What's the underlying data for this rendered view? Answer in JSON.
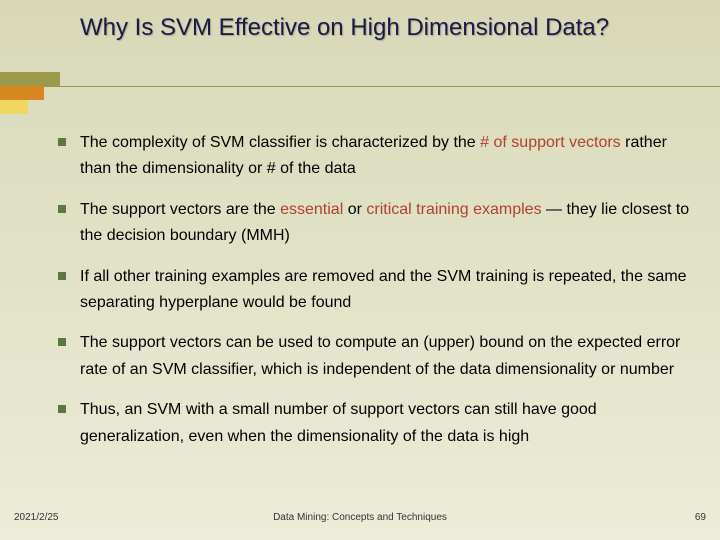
{
  "title": "Why Is SVM Effective on High Dimensional Data?",
  "bullets": [
    {
      "segments": [
        {
          "t": "The complexity of SVM classifier is characterized by the ",
          "hl": false
        },
        {
          "t": "# of support vectors",
          "hl": true
        },
        {
          "t": " rather than the dimensionality or # of the data",
          "hl": false
        }
      ]
    },
    {
      "segments": [
        {
          "t": "The support vectors are the ",
          "hl": false
        },
        {
          "t": "essential",
          "hl": true
        },
        {
          "t": " or ",
          "hl": false
        },
        {
          "t": "critical training examples",
          "hl": true
        },
        {
          "t": " — they lie closest to the decision boundary (MMH)",
          "hl": false
        }
      ]
    },
    {
      "segments": [
        {
          "t": "If all other training examples are removed and the SVM training is repeated, the same separating hyperplane would be found",
          "hl": false
        }
      ]
    },
    {
      "segments": [
        {
          "t": "The support vectors can be used to compute an (upper) bound on the expected error rate of an SVM classifier, which is independent of the data dimensionality or number",
          "hl": false
        }
      ]
    },
    {
      "segments": [
        {
          "t": "Thus, an SVM with a small number of support vectors can still have good generalization, even when the dimensionality of the data is high",
          "hl": false
        }
      ]
    }
  ],
  "footer": {
    "date": "2021/2/25",
    "mid": "Data Mining: Concepts and Techniques",
    "page": "69"
  },
  "colors": {
    "title": "#1a1a4a",
    "highlight": "#b04030",
    "bullet_marker": "#5a7840",
    "bg_top": "#d8d8b8",
    "bg_bottom": "#ececd8",
    "bar_olive": "#9a9a4a",
    "bar_orange": "#d88820",
    "bar_yellow": "#f0d860"
  }
}
